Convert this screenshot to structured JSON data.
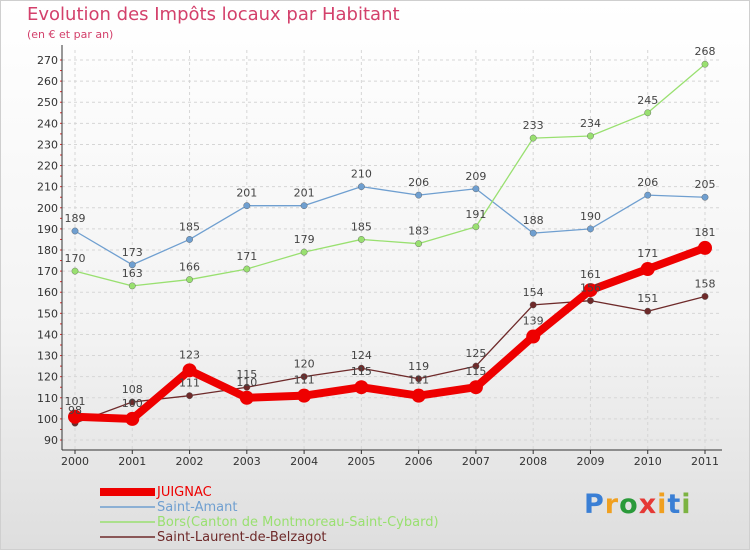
{
  "chart_data": {
    "type": "line",
    "title": "Evolution des Impôts locaux par Habitant",
    "subtitle": "(en € et par an)",
    "xlabel": "",
    "ylabel": "",
    "ylim": [
      90,
      270
    ],
    "y_ticks": [
      90,
      100,
      110,
      120,
      130,
      140,
      150,
      160,
      170,
      180,
      190,
      200,
      210,
      220,
      230,
      240,
      250,
      260,
      270
    ],
    "x": [
      "2000",
      "2001",
      "2002",
      "2003",
      "2004",
      "2005",
      "2006",
      "2007",
      "2008",
      "2009",
      "2010",
      "2011"
    ],
    "grid": true,
    "series": [
      {
        "name": "JUIGNAC",
        "color": "#ee0000",
        "values": [
          101,
          100,
          123,
          110,
          111,
          115,
          111,
          115,
          139,
          161,
          171,
          181
        ]
      },
      {
        "name": "Saint-Amant",
        "color": "#6f9fd0",
        "values": [
          189,
          173,
          185,
          201,
          201,
          210,
          206,
          209,
          188,
          190,
          206,
          205
        ]
      },
      {
        "name": "Bors(Canton de Montmoreau-Saint-Cybard)",
        "color": "#99e070",
        "values": [
          170,
          163,
          166,
          171,
          179,
          185,
          183,
          191,
          233,
          234,
          245,
          268
        ]
      },
      {
        "name": "Saint-Laurent-de-Belzagot",
        "color": "#6e2a2a",
        "values": [
          98,
          108,
          111,
          115,
          120,
          124,
          119,
          125,
          154,
          156,
          151,
          158
        ]
      }
    ]
  },
  "logo": {
    "text": "Proxiti"
  }
}
